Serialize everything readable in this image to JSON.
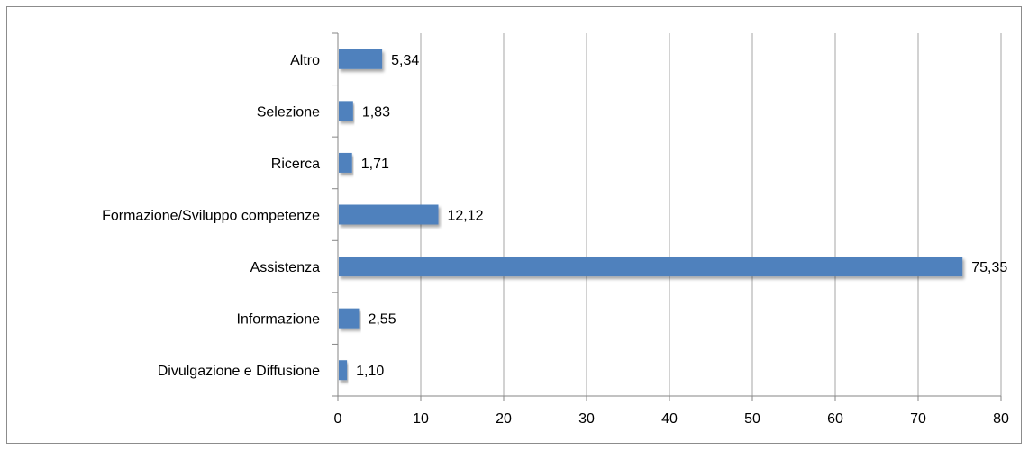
{
  "chart_data": {
    "type": "bar",
    "orientation": "horizontal",
    "categories": [
      "Altro",
      "Selezione",
      "Ricerca",
      "Formazione/Sviluppo competenze",
      "Assistenza",
      "Informazione",
      "Divulgazione e Diffusione"
    ],
    "values": [
      5.34,
      1.83,
      1.71,
      12.12,
      75.35,
      2.55,
      1.1
    ],
    "data_labels": [
      "5,34",
      "1,83",
      "1,71",
      "12,12",
      "75,35",
      "2,55",
      "1,10"
    ],
    "xlim": [
      0,
      80
    ],
    "xticks": [
      0,
      10,
      20,
      30,
      40,
      50,
      60,
      70,
      80
    ],
    "title": "",
    "xlabel": "",
    "ylabel": "",
    "grid": "vertical",
    "legend": "none",
    "colors": {
      "bar": "#4f81bd",
      "grid": "#a6a6a6",
      "axis": "#868686"
    }
  }
}
